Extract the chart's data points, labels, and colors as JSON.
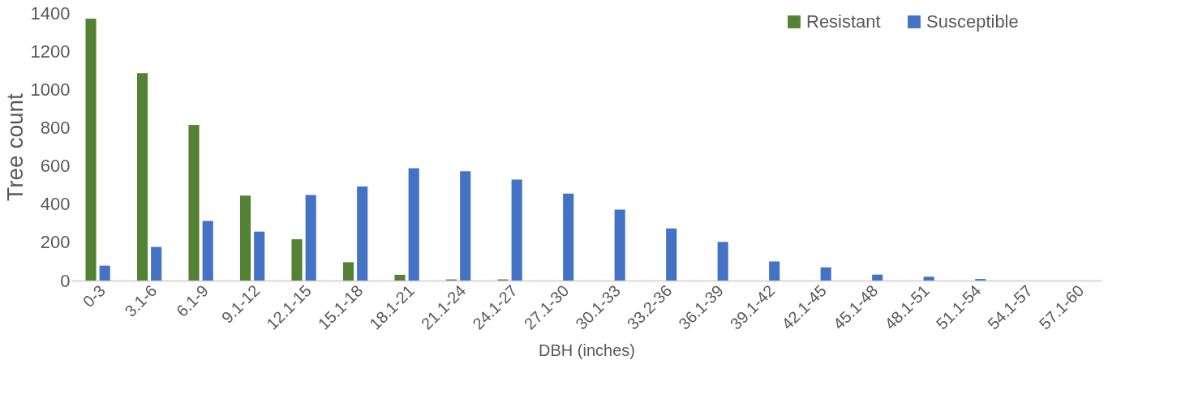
{
  "chart_data": {
    "type": "bar",
    "xlabel": "DBH (inches)",
    "ylabel": "Tree count",
    "categories": [
      "0-3",
      "3.1-6",
      "6.1-9",
      "9.1-12",
      "12.1-15",
      "15.1-18",
      "18.1-21",
      "21.1-24",
      "24.1-27",
      "27.1-30",
      "30.1-33",
      "33.2-36",
      "36.1-39",
      "39.1-42",
      "42.1-45",
      "45.1-48",
      "48.1-51",
      "51.1-54",
      "54.1-57",
      "57.1-60"
    ],
    "series": [
      {
        "name": "Resistant",
        "color": "#548235",
        "values": [
          1370,
          1085,
          815,
          444,
          216,
          96,
          30,
          6,
          6,
          null,
          null,
          0,
          0,
          0,
          0,
          0,
          0,
          0,
          0,
          0
        ]
      },
      {
        "name": "Susceptible",
        "color": "#4472c4",
        "values": [
          78,
          176,
          312,
          256,
          448,
          492,
          588,
          572,
          528,
          455,
          371,
          273,
          202,
          100,
          69,
          31,
          20,
          8,
          null,
          null
        ]
      }
    ],
    "ylim": [
      0,
      1400
    ],
    "yticks": [
      0,
      200,
      400,
      600,
      800,
      1000,
      1200,
      1400
    ],
    "grid": false,
    "legend": "top right"
  }
}
